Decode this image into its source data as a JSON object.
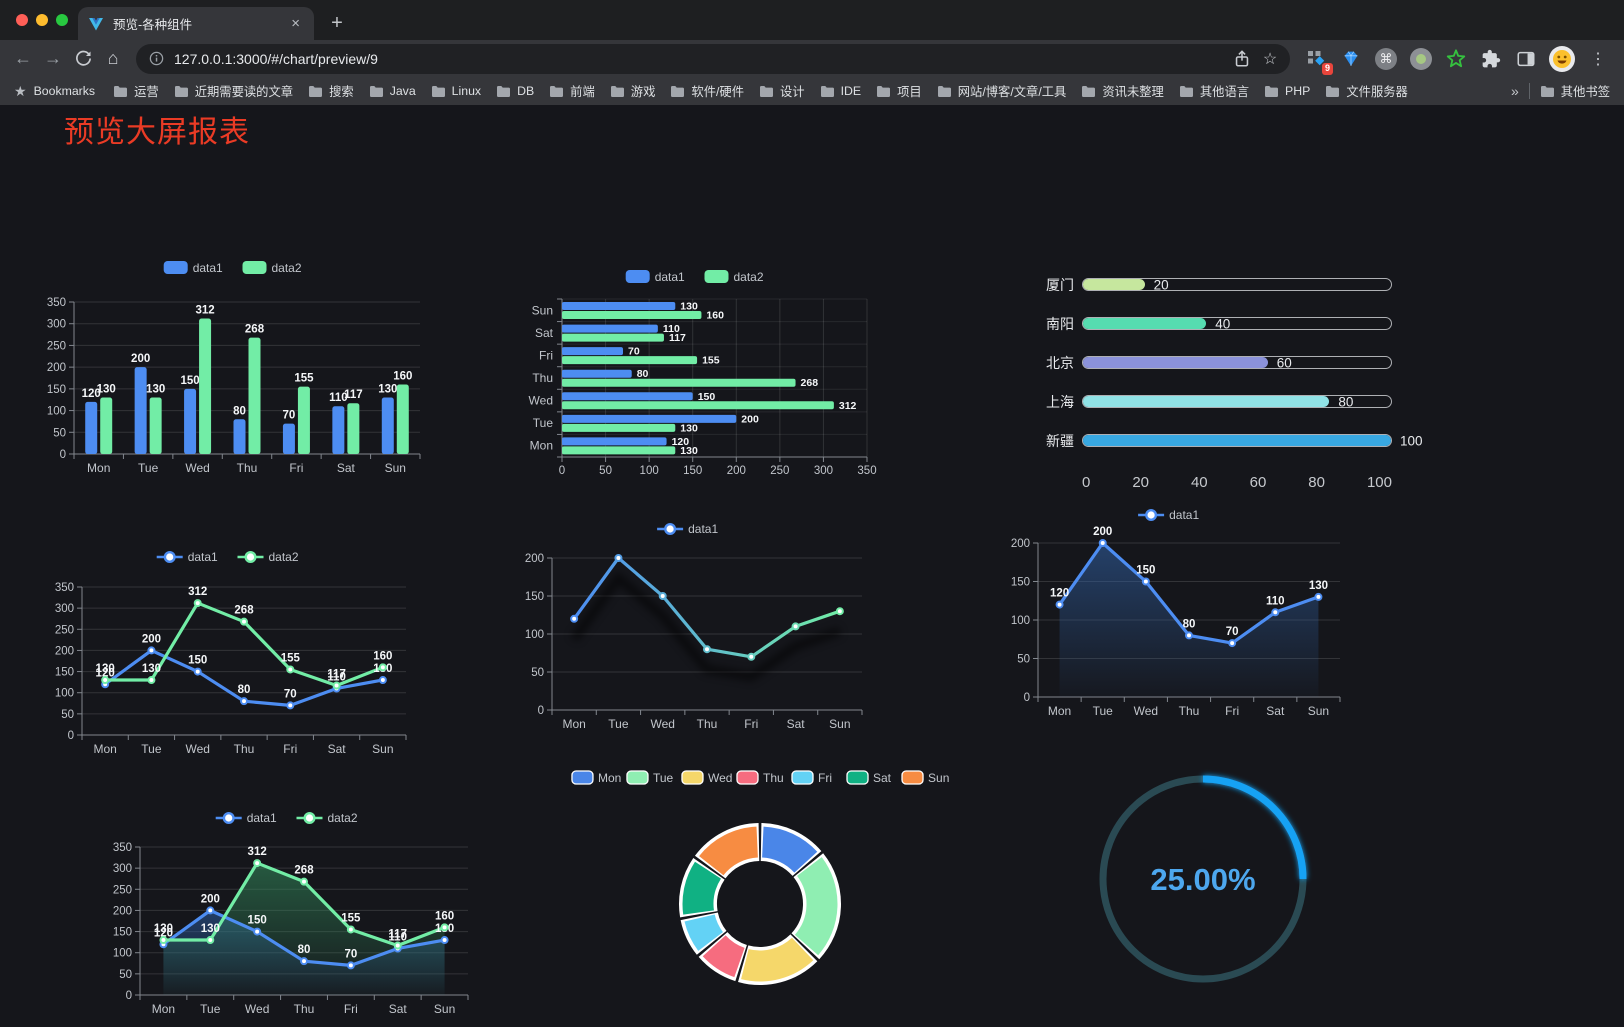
{
  "browser": {
    "tab_title": "预览-各种组件",
    "url": "127.0.0.1:3000/#/chart/preview/9",
    "bookmarks_label": "Bookmarks",
    "bookmark_folders": [
      "运营",
      "近期需要读的文章",
      "搜索",
      "Java",
      "Linux",
      "DB",
      "前端",
      "游戏",
      "软件/硬件",
      "设计",
      "IDE",
      "项目",
      "网站/博客/文章/工具",
      "资讯未整理",
      "其他语言",
      "PHP",
      "文件服务器"
    ],
    "overflow_chevron": "»",
    "other_bookmarks_label": "其他书签",
    "extension_badge_count": "9"
  },
  "page": {
    "title": "预览大屏报表",
    "title_color": "#ea3b25"
  },
  "chart_data": [
    {
      "type": "bar",
      "categories": [
        "Mon",
        "Tue",
        "Wed",
        "Thu",
        "Fri",
        "Sat",
        "Sun"
      ],
      "series": [
        {
          "name": "data1",
          "color": "#4d8df2",
          "values": [
            120,
            200,
            150,
            80,
            70,
            110,
            130
          ]
        },
        {
          "name": "data2",
          "color": "#72eda6",
          "values": [
            130,
            130,
            312,
            268,
            155,
            117,
            160
          ]
        }
      ],
      "ylim": [
        0,
        350
      ],
      "ytick_step": 50,
      "data_labels": true,
      "legend": "rect",
      "grid": true
    },
    {
      "type": "hbar",
      "categories": [
        "Mon",
        "Tue",
        "Wed",
        "Thu",
        "Fri",
        "Sat",
        "Sun"
      ],
      "series": [
        {
          "name": "data1",
          "color": "#4d8df2",
          "values": [
            120,
            200,
            150,
            80,
            70,
            110,
            130
          ]
        },
        {
          "name": "data2",
          "color": "#72eda6",
          "values": [
            130,
            130,
            312,
            268,
            155,
            117,
            160
          ]
        }
      ],
      "xlim": [
        0,
        350
      ],
      "xtick_step": 50,
      "data_labels": true,
      "legend": "rect",
      "grid": true
    },
    {
      "type": "progress",
      "max": 100,
      "ticks": [
        0,
        20,
        40,
        60,
        80,
        100
      ],
      "items": [
        {
          "label": "厦门",
          "value": 20,
          "color": "#c6e79e"
        },
        {
          "label": "南阳",
          "value": 40,
          "color": "#56dcb0"
        },
        {
          "label": "北京",
          "value": 60,
          "color": "#8b92da"
        },
        {
          "label": "上海",
          "value": 80,
          "color": "#90e2e6"
        },
        {
          "label": "新疆",
          "value": 100,
          "color": "#38a8e2"
        }
      ]
    },
    {
      "type": "line",
      "categories": [
        "Mon",
        "Tue",
        "Wed",
        "Thu",
        "Fri",
        "Sat",
        "Sun"
      ],
      "series": [
        {
          "name": "data1",
          "color": "#4d8df2",
          "values": [
            120,
            200,
            150,
            80,
            70,
            110,
            130
          ]
        },
        {
          "name": "data2",
          "color": "#72eda6",
          "values": [
            130,
            130,
            312,
            268,
            155,
            117,
            160
          ]
        }
      ],
      "ylim": [
        0,
        350
      ],
      "ytick_step": 50,
      "data_labels": true,
      "legend": "dot",
      "grid": true
    },
    {
      "type": "line",
      "variant": "gradient",
      "shadow": true,
      "categories": [
        "Mon",
        "Tue",
        "Wed",
        "Thu",
        "Fri",
        "Sat",
        "Sun"
      ],
      "series": [
        {
          "name": "data1",
          "color": "#4d8df2",
          "color_end": "#72eda6",
          "values": [
            120,
            200,
            150,
            80,
            70,
            110,
            130
          ]
        }
      ],
      "ylim": [
        0,
        200
      ],
      "ytick_step": 50,
      "data_labels": false,
      "legend": "dot",
      "grid": true
    },
    {
      "type": "line",
      "variant": "area",
      "categories": [
        "Mon",
        "Tue",
        "Wed",
        "Thu",
        "Fri",
        "Sat",
        "Sun"
      ],
      "series": [
        {
          "name": "data1",
          "color": "#4d8df2",
          "fill": "50,100,170",
          "values": [
            120,
            200,
            150,
            80,
            70,
            110,
            130
          ]
        }
      ],
      "ylim": [
        0,
        200
      ],
      "ytick_step": 50,
      "data_labels": true,
      "legend": "dot",
      "grid": true
    },
    {
      "type": "line",
      "variant": "area",
      "categories": [
        "Mon",
        "Tue",
        "Wed",
        "Thu",
        "Fri",
        "Sat",
        "Sun"
      ],
      "series": [
        {
          "name": "data1",
          "color": "#4d8df2",
          "fill": "45,95,165",
          "values": [
            120,
            200,
            150,
            80,
            70,
            110,
            130
          ]
        },
        {
          "name": "data2",
          "color": "#72eda6",
          "fill": "52,145,95",
          "values": [
            130,
            130,
            312,
            268,
            155,
            117,
            160
          ]
        }
      ],
      "ylim": [
        0,
        350
      ],
      "ytick_step": 50,
      "data_labels": true,
      "legend": "dot",
      "grid": true
    },
    {
      "type": "pie",
      "items": [
        {
          "label": "Mon",
          "value": 120,
          "color": "#4a86e8"
        },
        {
          "label": "Tue",
          "value": 200,
          "color": "#8feeb2"
        },
        {
          "label": "Wed",
          "value": 150,
          "color": "#f5d76a"
        },
        {
          "label": "Thu",
          "value": 80,
          "color": "#f66c7f"
        },
        {
          "label": "Fri",
          "value": 70,
          "color": "#63d2f5"
        },
        {
          "label": "Sat",
          "value": 110,
          "color": "#10b183"
        },
        {
          "label": "Sun",
          "value": 130,
          "color": "#f78c42"
        }
      ]
    },
    {
      "type": "gauge",
      "value": 25,
      "display": "25.00%",
      "color": "#18a2f4",
      "track_color": "#2a4a53",
      "text_color": "#4da7ee"
    }
  ]
}
